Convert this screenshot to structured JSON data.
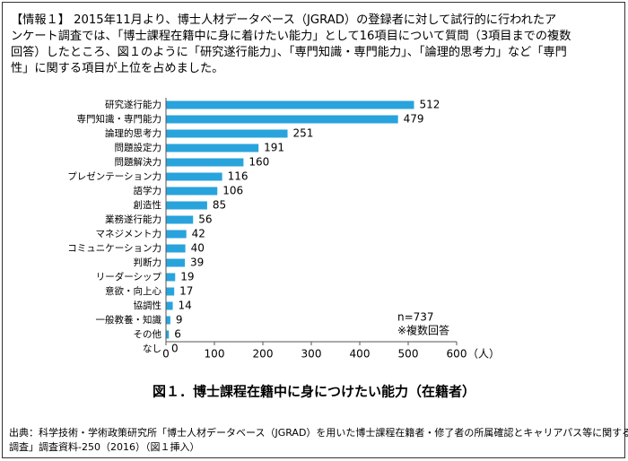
{
  "intro": [
    "【情報１】 2015年11月より、博士人材データベース（JGRAD）の登録者に対して試行的に行われたア",
    "ンケート調査では、「博士課程在籍中に身に着けたい能力」として16項目について質問（3項目までの複数",
    "回答）したところ、図１のように「研究遂行能力」、「専門知識・専門能力」、「論理的思考力」など「専門",
    "性」に関する項目が上位を占めました。"
  ],
  "chart_data": {
    "type": "bar",
    "orientation": "horizontal",
    "caption": "図１．博士課程在籍中に身につけたい能力（在籍者）",
    "x_label": "（人）",
    "annotations": [
      "n=737",
      "※複数回答"
    ],
    "categories": [
      "研究遂行能力",
      "専門知識・専門能力",
      "論理的思考力",
      "問題設定力",
      "問題解決力",
      "プレゼンテーション力",
      "語学力",
      "創造性",
      "業務遂行能力",
      "マネジメント力",
      "コミュニケーション力",
      "判断力",
      "リーダーシップ",
      "意欲・向上心",
      "協調性",
      "一般教養・知識",
      "その他",
      "なし"
    ],
    "values": [
      512,
      479,
      251,
      191,
      160,
      116,
      106,
      85,
      56,
      42,
      40,
      39,
      19,
      17,
      14,
      9,
      6,
      0
    ],
    "color": "#29a3dc",
    "xlim": [
      0,
      600
    ],
    "xticks": [
      0,
      100,
      200,
      300,
      400,
      500,
      600
    ]
  },
  "source": [
    "出典：科学技術・学術政策研究所「博士人材データベース（JGRAD）を用いた博士課程在籍者・修了者の所属確認とキャリアパス等に関する意識",
    "調査」調査資料-250（2016）（図１挿入）"
  ]
}
